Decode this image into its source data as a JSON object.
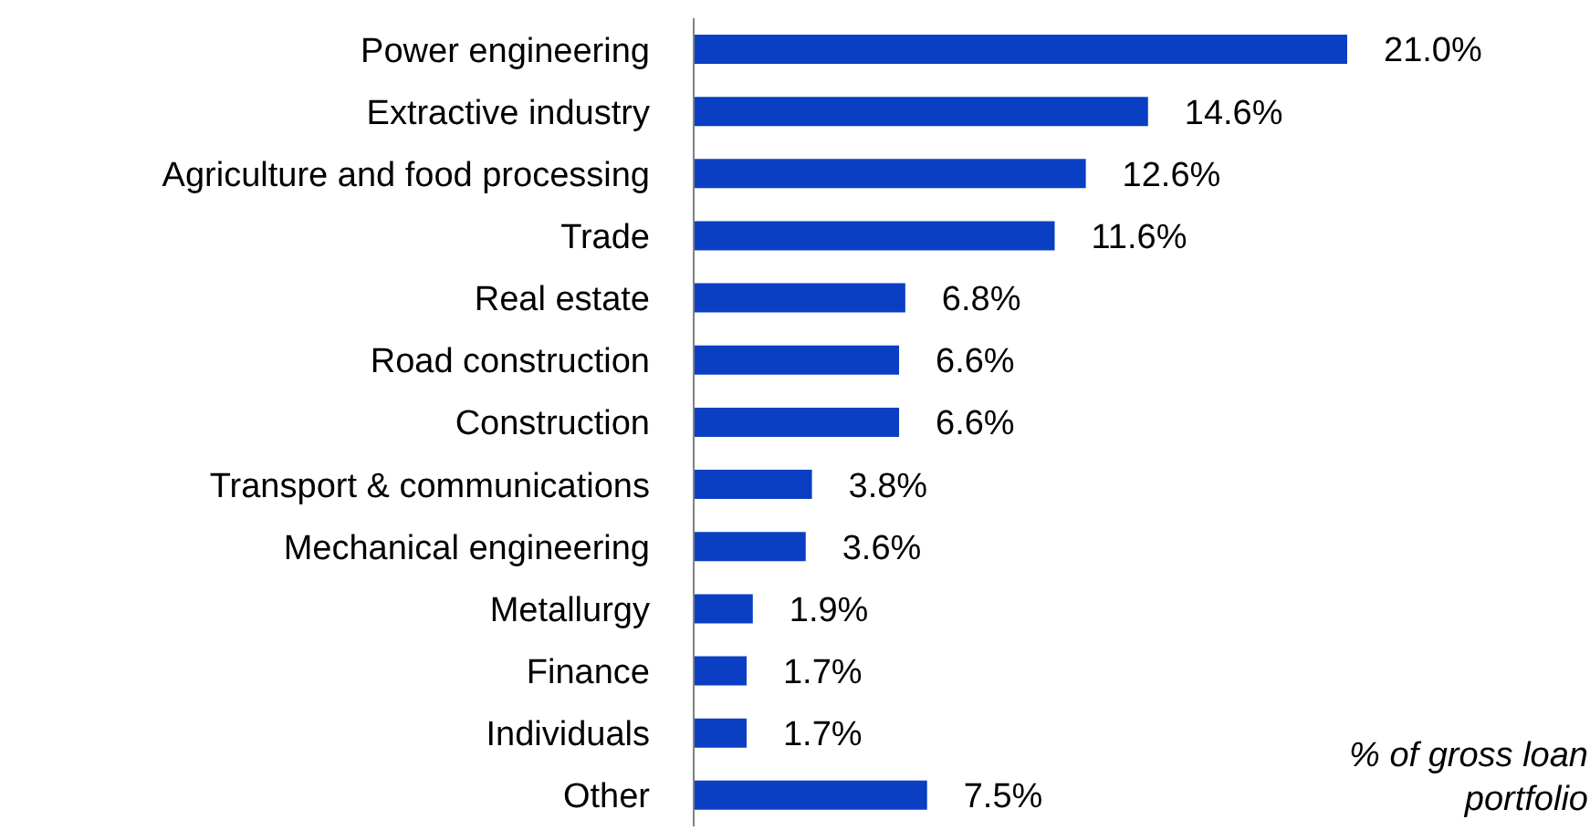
{
  "chart_data": {
    "type": "bar",
    "orientation": "horizontal",
    "categories": [
      "Power engineering",
      "Extractive industry",
      "Agriculture and food processing",
      "Trade",
      "Real estate",
      "Road construction",
      "Construction",
      "Transport & communications",
      "Mechanical engineering",
      "Metallurgy",
      "Finance",
      "Individuals",
      "Other"
    ],
    "values": [
      21.0,
      14.6,
      12.6,
      11.6,
      6.8,
      6.6,
      6.6,
      3.8,
      3.6,
      1.9,
      1.7,
      1.7,
      7.5
    ],
    "value_labels": [
      "21.0%",
      "14.6%",
      "12.6%",
      "11.6%",
      "6.8%",
      "6.6%",
      "6.6%",
      "3.8%",
      "3.6%",
      "1.9%",
      "1.7%",
      "1.7%",
      "7.5%"
    ],
    "color": "#0a3fc4",
    "annotations": [
      "% of gross loan portfolio"
    ],
    "grid": false,
    "legend": false
  }
}
